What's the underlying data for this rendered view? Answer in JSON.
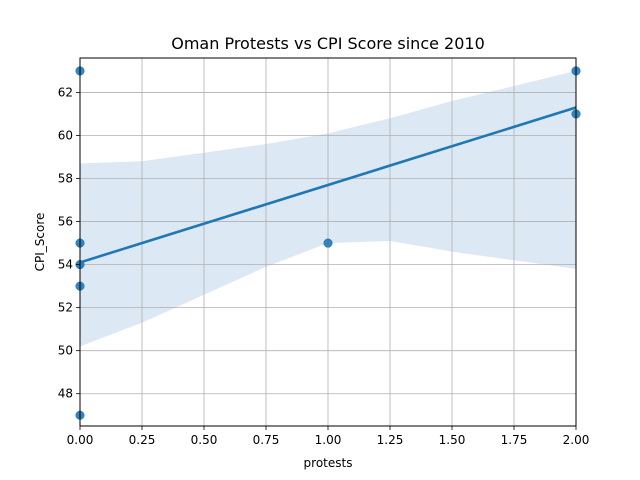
{
  "chart_data": {
    "type": "scatter",
    "title": "Oman Protests vs CPI Score since 2010",
    "xlabel": "protests",
    "ylabel": "CPI_Score",
    "xlim": [
      0,
      2
    ],
    "ylim": [
      46.5,
      63.6
    ],
    "grid": true,
    "x_ticks": [
      "0.00",
      "0.25",
      "0.50",
      "0.75",
      "1.00",
      "1.25",
      "1.50",
      "1.75",
      "2.00"
    ],
    "y_ticks": [
      "48",
      "50",
      "52",
      "54",
      "56",
      "58",
      "60",
      "62"
    ],
    "points": [
      {
        "x": 0,
        "y": 63
      },
      {
        "x": 0,
        "y": 55
      },
      {
        "x": 0,
        "y": 54
      },
      {
        "x": 0,
        "y": 53
      },
      {
        "x": 0,
        "y": 47
      },
      {
        "x": 1,
        "y": 55
      },
      {
        "x": 2,
        "y": 63
      },
      {
        "x": 2,
        "y": 61
      }
    ],
    "regression": {
      "x": [
        0,
        2
      ],
      "y": [
        54.1,
        61.3
      ]
    },
    "confidence_band": {
      "x": [
        0,
        0.25,
        0.5,
        0.75,
        1.0,
        1.25,
        1.5,
        1.75,
        2.0
      ],
      "upper": [
        58.7,
        58.8,
        59.2,
        59.6,
        60.1,
        60.8,
        61.6,
        62.3,
        63.0
      ],
      "lower": [
        50.2,
        51.3,
        52.6,
        53.9,
        55.0,
        55.1,
        54.6,
        54.2,
        53.8
      ]
    },
    "colors": {
      "points": "#1f77b4",
      "line": "#1f77b4",
      "band": "#dce8f3",
      "grid": "#b0b0b0"
    }
  }
}
